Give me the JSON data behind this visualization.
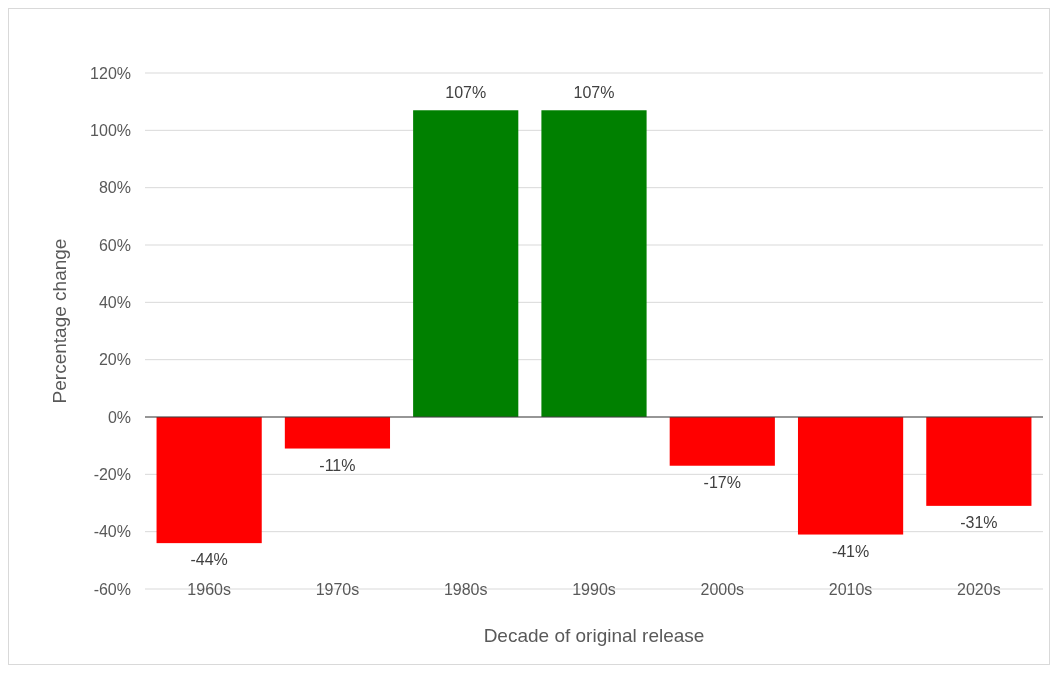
{
  "chart_data": {
    "type": "bar",
    "categories": [
      "1960s",
      "1970s",
      "1980s",
      "1990s",
      "2000s",
      "2010s",
      "2020s"
    ],
    "values": [
      -44,
      -11,
      107,
      107,
      -17,
      -41,
      -31
    ],
    "colors": [
      "#ff0000",
      "#ff0000",
      "#008000",
      "#008000",
      "#ff0000",
      "#ff0000",
      "#ff0000"
    ],
    "value_labels": [
      "-44%",
      "-11%",
      "107%",
      "107%",
      "-17%",
      "-41%",
      "-31%"
    ],
    "xlabel": "Decade of original release",
    "ylabel": "Percentage change",
    "ylim": [
      -60,
      120
    ],
    "yticks": [
      {
        "value": -60,
        "label": "-60%"
      },
      {
        "value": -40,
        "label": "-40%"
      },
      {
        "value": -20,
        "label": "-20%"
      },
      {
        "value": 0,
        "label": "0%"
      },
      {
        "value": 20,
        "label": "20%"
      },
      {
        "value": 40,
        "label": "40%"
      },
      {
        "value": 60,
        "label": "60%"
      },
      {
        "value": 80,
        "label": "80%"
      },
      {
        "value": 100,
        "label": "100%"
      },
      {
        "value": 120,
        "label": "120%"
      }
    ],
    "grid": "y"
  }
}
